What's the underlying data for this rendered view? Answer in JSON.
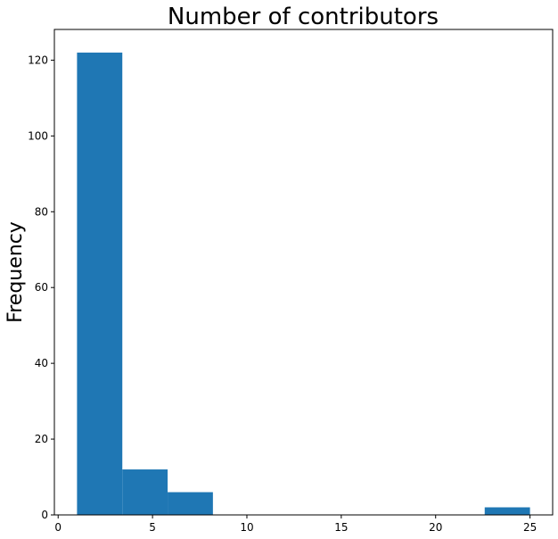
{
  "chart_data": {
    "type": "histogram",
    "title": "Number of contributors",
    "ylabel": "Frequency",
    "bins": [
      1,
      3.4,
      5.8,
      8.2,
      10.6,
      13,
      15.4,
      17.8,
      20.2,
      22.6,
      25
    ],
    "values": [
      122,
      12,
      6,
      0,
      0,
      0,
      0,
      0,
      0,
      2
    ],
    "color": "#1f77b4",
    "xlim": [
      -0.2,
      26.2
    ],
    "xticks": [
      0,
      5,
      10,
      15,
      20,
      25
    ],
    "ylim": [
      0,
      128.1
    ],
    "yticks": [
      0,
      20,
      40,
      60,
      80,
      100,
      120
    ],
    "grid": false
  }
}
